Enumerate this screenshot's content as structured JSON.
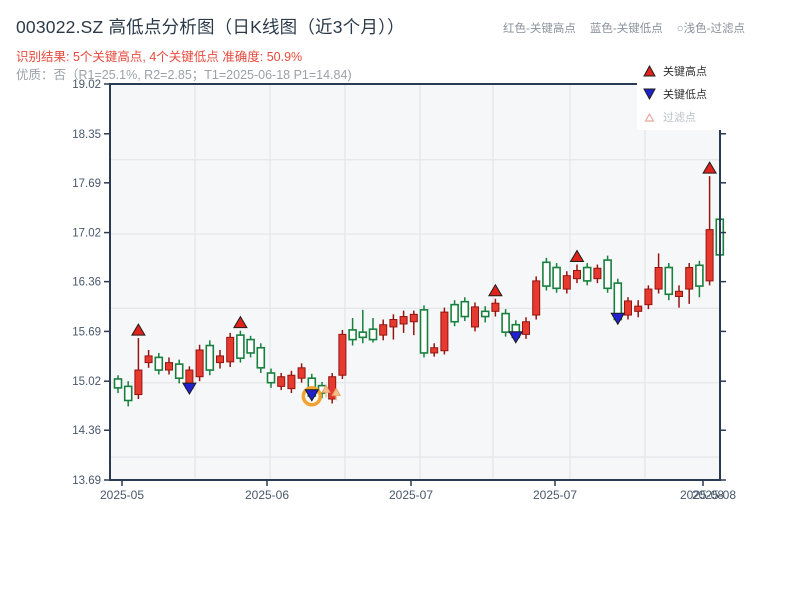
{
  "header": {
    "title": "003022.SZ 高低点分析图（日K线图（近3个月））",
    "recognition_line": "识别结果: 5个关键高点, 4个关键低点  准确度: 50.9%",
    "quality_line": "优质：否（R1=25.1%, R2=2.85；T1=2025-06-18 P1=14.84)",
    "legend_hint": {
      "high": "红色-关键高点",
      "low": "蓝色-关键低点",
      "filtered": "○浅色-过滤点"
    }
  },
  "legend_box": {
    "items": [
      {
        "label": "关键高点",
        "type": "key-high"
      },
      {
        "label": "关键低点",
        "type": "key-low"
      },
      {
        "label": "过滤点",
        "type": "filtered"
      }
    ]
  },
  "colors": {
    "up_fill": "#e63a2e",
    "up_stroke": "#931410",
    "down_fill": "#ffffff",
    "down_stroke": "#17803f",
    "key_high": "#e0231a",
    "key_low": "#2020cf",
    "marker_edge": "#1c1c1c",
    "ring": "#f0a233",
    "filtered": "#f5c091",
    "filtered_edge": "#e8a264",
    "axis": "#2a3a52",
    "label": "#49586c",
    "grid": "#e3e6ea",
    "plot_bg": "#f6f7f9"
  },
  "chart_data": {
    "type": "candlestick",
    "title": "003022.SZ 高低点分析图（日K线图（近3个月））",
    "period": "近3个月, 日K线",
    "ylim": [
      13.69,
      19.02
    ],
    "yticks": [
      19.02,
      18.35,
      17.69,
      17.02,
      16.36,
      15.69,
      15.02,
      14.36,
      13.69
    ],
    "grid_prices": [
      18.0,
      17.0,
      16.0,
      15.0,
      14.0
    ],
    "xtick_labels": [
      {
        "label": "2025-05",
        "x": 122
      },
      {
        "label": "2025-06",
        "x": 267
      },
      {
        "label": "2025-07",
        "x": 411
      },
      {
        "label": "2025-07",
        "x": 555
      },
      {
        "label": "2025-08",
        "x": 702
      },
      {
        "label": "2025-08",
        "x": 714
      }
    ],
    "xtick_marks": [
      122,
      267,
      411,
      555,
      703
    ],
    "vgrid_x": [
      195,
      270,
      345,
      420,
      493,
      570,
      645
    ],
    "candles_format": [
      "open",
      "high",
      "low",
      "close"
    ],
    "candles": [
      [
        15.05,
        15.1,
        14.86,
        14.93
      ],
      [
        14.95,
        15.02,
        14.68,
        14.76
      ],
      [
        14.84,
        15.6,
        14.78,
        15.17
      ],
      [
        15.27,
        15.44,
        15.2,
        15.36
      ],
      [
        15.34,
        15.4,
        15.11,
        15.17
      ],
      [
        15.17,
        15.34,
        15.11,
        15.27
      ],
      [
        15.25,
        15.31,
        14.99,
        15.06
      ],
      [
        14.92,
        15.22,
        14.86,
        15.17
      ],
      [
        15.08,
        15.51,
        15.02,
        15.44
      ],
      [
        15.5,
        15.57,
        15.1,
        15.17
      ],
      [
        15.27,
        15.44,
        15.19,
        15.36
      ],
      [
        15.28,
        15.67,
        15.21,
        15.61
      ],
      [
        15.64,
        15.7,
        15.27,
        15.33
      ],
      [
        15.58,
        15.63,
        15.34,
        15.4
      ],
      [
        15.47,
        15.53,
        15.13,
        15.2
      ],
      [
        15.13,
        15.19,
        14.93,
        15.0
      ],
      [
        14.95,
        15.13,
        14.9,
        15.08
      ],
      [
        14.92,
        15.16,
        14.86,
        15.1
      ],
      [
        15.06,
        15.26,
        15.0,
        15.2
      ],
      [
        15.06,
        15.12,
        14.77,
        14.82
      ],
      [
        14.96,
        15.01,
        14.79,
        14.86
      ],
      [
        14.78,
        15.13,
        14.72,
        15.08
      ],
      [
        15.1,
        15.71,
        15.05,
        15.65
      ],
      [
        15.71,
        15.87,
        15.5,
        15.58
      ],
      [
        15.68,
        15.98,
        15.53,
        15.61
      ],
      [
        15.72,
        15.87,
        15.54,
        15.58
      ],
      [
        15.64,
        15.85,
        15.57,
        15.78
      ],
      [
        15.75,
        15.92,
        15.58,
        15.85
      ],
      [
        15.79,
        15.97,
        15.67,
        15.89
      ],
      [
        15.82,
        15.97,
        15.64,
        15.92
      ],
      [
        15.98,
        16.04,
        15.34,
        15.4
      ],
      [
        15.4,
        15.53,
        15.35,
        15.47
      ],
      [
        15.43,
        16.01,
        15.38,
        15.95
      ],
      [
        16.05,
        16.11,
        15.76,
        15.82
      ],
      [
        16.09,
        16.15,
        15.83,
        15.89
      ],
      [
        15.75,
        16.08,
        15.69,
        16.02
      ],
      [
        15.96,
        16.03,
        15.81,
        15.89
      ],
      [
        15.96,
        16.13,
        15.89,
        16.07
      ],
      [
        15.93,
        15.99,
        15.62,
        15.68
      ],
      [
        15.78,
        15.84,
        15.55,
        15.61
      ],
      [
        15.65,
        15.88,
        15.59,
        15.82
      ],
      [
        15.91,
        16.43,
        15.85,
        16.37
      ],
      [
        16.62,
        16.68,
        16.24,
        16.3
      ],
      [
        16.55,
        16.61,
        16.21,
        16.27
      ],
      [
        16.26,
        16.5,
        16.2,
        16.44
      ],
      [
        16.4,
        16.59,
        16.34,
        16.51
      ],
      [
        16.55,
        16.61,
        16.31,
        16.37
      ],
      [
        16.4,
        16.59,
        16.34,
        16.54
      ],
      [
        16.65,
        16.71,
        16.21,
        16.27
      ],
      [
        16.34,
        16.4,
        15.8,
        15.85
      ],
      [
        15.91,
        16.15,
        15.85,
        16.1
      ],
      [
        15.96,
        16.11,
        15.88,
        16.03
      ],
      [
        16.05,
        16.31,
        15.99,
        16.26
      ],
      [
        16.26,
        16.74,
        16.2,
        16.55
      ],
      [
        16.55,
        16.61,
        16.11,
        16.19
      ],
      [
        16.16,
        16.31,
        16.01,
        16.23
      ],
      [
        16.26,
        16.61,
        16.06,
        16.55
      ],
      [
        16.58,
        16.64,
        16.15,
        16.3
      ],
      [
        16.37,
        17.78,
        16.31,
        17.06
      ],
      [
        17.2,
        17.29,
        16.64,
        16.72
      ]
    ],
    "key_high_indices": [
      2,
      12,
      37,
      45,
      58
    ],
    "key_low_indices": [
      7,
      19,
      39,
      49
    ],
    "highlight_ring_index": 19,
    "highlight_note": {
      "date": "2025-06-18",
      "price": 14.84
    },
    "filtered_points": [
      {
        "index": 20,
        "price": 14.91
      },
      {
        "index": 21,
        "price": 14.87
      }
    ],
    "counts": {
      "key_highs": 5,
      "key_lows": 4,
      "accuracy": "50.9%"
    }
  }
}
